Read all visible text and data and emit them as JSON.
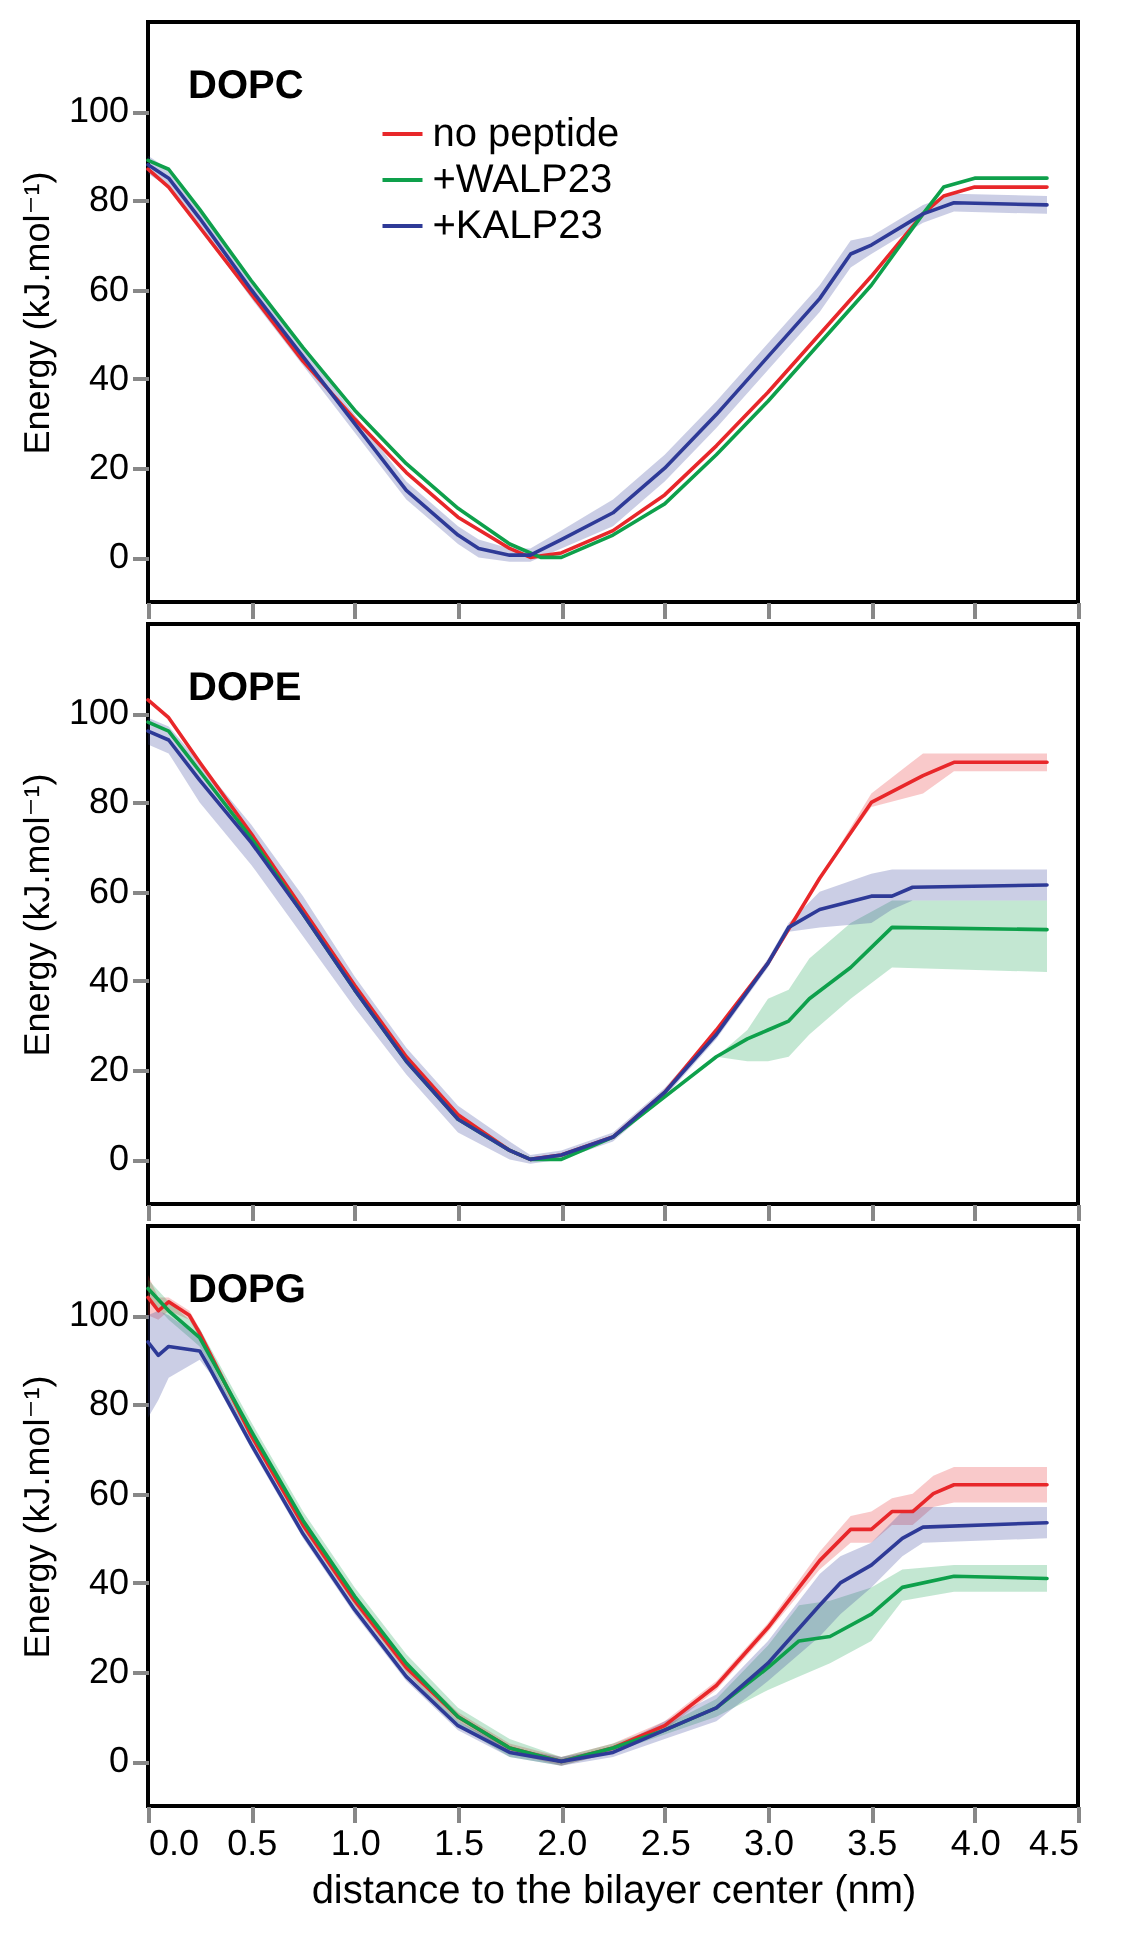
{
  "chart_data": [
    {
      "type": "line",
      "title": "DOPC",
      "ylabel": "Energy (kJ.mol⁻¹)",
      "xlim": [
        0,
        4.5
      ],
      "ylim": [
        -10,
        120
      ],
      "yticks": [
        0,
        20,
        40,
        60,
        80,
        100
      ],
      "xticks": [
        {
          "value": 0,
          "label": null
        },
        {
          "value": 0.5,
          "label": null
        },
        {
          "value": 1,
          "label": null
        },
        {
          "value": 1.5,
          "label": null
        },
        {
          "value": 2,
          "label": null
        },
        {
          "value": 2.5,
          "label": null
        },
        {
          "value": 3,
          "label": null
        },
        {
          "value": 3.5,
          "label": null
        },
        {
          "value": 4,
          "label": null
        },
        {
          "value": 4.5,
          "label": null
        }
      ],
      "tick_labels": "y",
      "legend": "top",
      "line_style": "solid",
      "marker": "none",
      "series": [
        {
          "name": "no peptide",
          "color": "#e8272a",
          "x": [
            0,
            0.1,
            0.25,
            0.5,
            0.75,
            1,
            1.25,
            1.5,
            1.75,
            1.85,
            2,
            2.25,
            2.5,
            2.75,
            3,
            3.25,
            3.5,
            3.75,
            3.85,
            4,
            4.35
          ],
          "values": [
            87,
            83,
            74,
            59,
            44,
            31,
            19,
            9,
            2,
            0,
            1,
            6,
            14,
            25,
            37,
            50,
            63,
            77,
            81,
            83,
            83
          ]
        },
        {
          "name": "+WALP23",
          "color": "#0ea04b",
          "x": [
            0,
            0.1,
            0.25,
            0.5,
            0.75,
            1,
            1.25,
            1.5,
            1.75,
            1.9,
            2,
            2.25,
            2.5,
            2.75,
            3,
            3.25,
            3.5,
            3.75,
            3.85,
            4,
            4.35
          ],
          "values": [
            89,
            87,
            78,
            62,
            47,
            33,
            21,
            11,
            3,
            0,
            0,
            5,
            12,
            23,
            35,
            48,
            61,
            77,
            83,
            85,
            85
          ]
        },
        {
          "name": "+KALP23",
          "color": "#2e3a97",
          "x": [
            0,
            0.1,
            0.25,
            0.5,
            0.75,
            1,
            1.25,
            1.5,
            1.6,
            1.75,
            1.85,
            2,
            2.25,
            2.5,
            2.75,
            3,
            3.25,
            3.4,
            3.5,
            3.75,
            3.9,
            4.35
          ],
          "values": [
            88,
            85,
            76,
            60,
            45,
            30,
            15,
            5,
            2,
            0.5,
            0.5,
            4,
            10,
            20,
            32,
            45,
            58,
            68,
            70,
            77,
            79.5,
            79
          ],
          "lower": [
            86,
            83,
            74,
            58,
            43,
            28,
            13,
            3,
            0,
            -1,
            -1,
            2,
            7,
            17,
            29,
            42,
            55,
            65,
            68,
            75,
            77.5,
            77
          ],
          "upper": [
            90,
            87,
            78,
            62,
            47,
            32,
            17,
            7,
            4,
            2,
            2,
            6,
            13,
            23,
            35,
            48,
            61,
            71,
            72,
            79,
            81.5,
            81
          ]
        }
      ]
    },
    {
      "type": "line",
      "title": "DOPE",
      "ylabel": "Energy (kJ.mol⁻¹)",
      "xlim": [
        0,
        4.5
      ],
      "ylim": [
        -10,
        120
      ],
      "yticks": [
        0,
        20,
        40,
        60,
        80,
        100
      ],
      "xticks": [
        {
          "value": 0,
          "label": null
        },
        {
          "value": 0.5,
          "label": null
        },
        {
          "value": 1,
          "label": null
        },
        {
          "value": 1.5,
          "label": null
        },
        {
          "value": 2,
          "label": null
        },
        {
          "value": 2.5,
          "label": null
        },
        {
          "value": 3,
          "label": null
        },
        {
          "value": 3.5,
          "label": null
        },
        {
          "value": 4,
          "label": null
        },
        {
          "value": 4.5,
          "label": null
        }
      ],
      "tick_labels": "y",
      "line_style": "solid",
      "marker": "none",
      "series": [
        {
          "color": "#e8272a",
          "x": [
            0,
            0.1,
            0.25,
            0.5,
            0.75,
            1,
            1.25,
            1.5,
            1.75,
            1.85,
            2,
            2.25,
            2.5,
            2.75,
            3,
            3.25,
            3.5,
            3.75,
            3.9,
            4.35
          ],
          "values": [
            103,
            99,
            89,
            73,
            56,
            39,
            23,
            10,
            2,
            0,
            1,
            5,
            15,
            29,
            44,
            63,
            80,
            86,
            89,
            89
          ],
          "lower": [
            103,
            99,
            89,
            73,
            56,
            39,
            23,
            10,
            2,
            0,
            1,
            5,
            15,
            29,
            44,
            63,
            79,
            82,
            87,
            87
          ],
          "upper": [
            103,
            99,
            89,
            73,
            56,
            39,
            23,
            10,
            2,
            0,
            1,
            5,
            15,
            29,
            44,
            63,
            82,
            91,
            91,
            91
          ]
        },
        {
          "color": "#0ea04b",
          "x": [
            0,
            0.1,
            0.25,
            0.5,
            0.75,
            1,
            1.25,
            1.5,
            1.75,
            1.85,
            2,
            2.25,
            2.5,
            2.75,
            2.9,
            3,
            3.1,
            3.2,
            3.4,
            3.6,
            4.35
          ],
          "values": [
            98,
            96,
            87,
            72,
            55,
            38,
            22,
            9,
            2,
            0,
            0,
            5,
            14,
            23,
            27,
            29,
            31,
            36,
            43,
            52,
            51.5
          ],
          "lower": [
            98,
            96,
            87,
            72,
            55,
            38,
            22,
            9,
            2,
            0,
            0,
            5,
            14,
            23,
            22,
            22,
            23,
            28,
            36,
            43,
            42
          ],
          "upper": [
            98,
            96,
            87,
            72,
            55,
            38,
            22,
            9,
            2,
            0,
            0,
            5,
            14,
            23,
            29,
            36,
            38,
            45,
            53,
            58,
            58
          ]
        },
        {
          "color": "#2e3a97",
          "x": [
            0,
            0.1,
            0.25,
            0.5,
            0.75,
            1,
            1.25,
            1.5,
            1.75,
            1.85,
            2,
            2.25,
            2.5,
            2.75,
            3,
            3.1,
            3.25,
            3.5,
            3.6,
            3.7,
            4.35
          ],
          "values": [
            96,
            94,
            85,
            71,
            55,
            38,
            22,
            9,
            2,
            0,
            1,
            5,
            15,
            28,
            44,
            52,
            56,
            59,
            59,
            61,
            61.5
          ],
          "lower": [
            93,
            91,
            80,
            66,
            50,
            34,
            19,
            6,
            0,
            -1,
            0,
            4,
            14,
            27,
            43,
            51,
            52,
            53,
            56,
            58,
            58
          ],
          "upper": [
            99,
            97,
            89,
            75,
            59,
            41,
            25,
            12,
            4,
            1,
            2,
            6,
            16,
            29,
            45,
            53,
            60,
            64,
            65,
            65,
            65
          ]
        }
      ]
    },
    {
      "type": "line",
      "title": "DOPG",
      "xlabel": "distance to the bilayer center (nm)",
      "ylabel": "Energy (kJ.mol⁻¹)",
      "xlim": [
        0,
        4.5
      ],
      "ylim": [
        -10,
        120
      ],
      "yticks": [
        0,
        20,
        40,
        60,
        80,
        100
      ],
      "xticks": [
        {
          "value": 0,
          "label": "0.0"
        },
        0.5,
        {
          "value": 1,
          "label": "1.0"
        },
        1.5,
        {
          "value": 2,
          "label": "2.0"
        },
        2.5,
        {
          "value": 3,
          "label": "3.0"
        },
        3.5,
        {
          "value": 4,
          "label": "4.0"
        },
        4.5
      ],
      "line_style": "solid",
      "marker": "none",
      "series": [
        {
          "color": "#e8272a",
          "x": [
            0,
            0.05,
            0.1,
            0.2,
            0.25,
            0.5,
            0.75,
            1,
            1.25,
            1.5,
            1.75,
            2,
            2.25,
            2.5,
            2.75,
            3,
            3.25,
            3.4,
            3.5,
            3.6,
            3.7,
            3.8,
            3.9,
            4.35
          ],
          "values": [
            104,
            101,
            103,
            100,
            96,
            73,
            53,
            36,
            21,
            10,
            3,
            0,
            3,
            8,
            17,
            30,
            45,
            52,
            52,
            56,
            56,
            60,
            62,
            62
          ],
          "lower": [
            100,
            99,
            101,
            99,
            95,
            72,
            52,
            35,
            20,
            9,
            2,
            -1,
            2,
            7,
            16,
            29,
            43,
            49,
            49,
            53,
            53,
            57,
            58,
            58
          ],
          "upper": [
            109,
            104,
            104,
            101,
            97,
            74,
            54,
            37,
            22,
            11,
            4,
            1,
            4,
            9,
            18,
            31,
            47,
            55,
            56,
            59,
            60,
            64,
            66,
            66
          ]
        },
        {
          "color": "#0ea04b",
          "x": [
            0,
            0.1,
            0.2,
            0.25,
            0.5,
            0.75,
            1,
            1.25,
            1.5,
            1.75,
            2,
            2.25,
            2.5,
            2.75,
            3,
            3.15,
            3.3,
            3.5,
            3.65,
            3.9,
            4.35
          ],
          "values": [
            106,
            101,
            97,
            95,
            74,
            54,
            37,
            22,
            10,
            3,
            0,
            3,
            7,
            12,
            21,
            27,
            28,
            33,
            39,
            41.5,
            41
          ],
          "lower": [
            104,
            99,
            95,
            93,
            72,
            52,
            35,
            20,
            8,
            1,
            -1,
            2,
            6,
            10,
            16,
            19,
            22,
            27,
            36,
            38,
            38
          ],
          "upper": [
            108,
            103,
            99,
            97,
            76,
            56,
            39,
            24,
            12,
            5,
            1,
            4,
            8,
            14,
            26,
            35,
            36,
            39,
            43,
            44,
            44
          ]
        },
        {
          "color": "#2e3a97",
          "x": [
            0,
            0.05,
            0.1,
            0.25,
            0.3,
            0.5,
            0.75,
            1,
            1.25,
            1.5,
            1.75,
            2,
            2.25,
            2.5,
            2.75,
            3,
            3.25,
            3.35,
            3.5,
            3.65,
            3.75,
            4.35
          ],
          "values": [
            94,
            91,
            93,
            92,
            88,
            71,
            51,
            34,
            19,
            8,
            2,
            0,
            2,
            7,
            12,
            22,
            35,
            40,
            44,
            50,
            52.5,
            53.5
          ],
          "lower": [
            77,
            81,
            86,
            90,
            87,
            70,
            50,
            33,
            18,
            7,
            1,
            -1,
            1,
            5,
            9,
            18,
            28,
            33,
            39,
            46,
            49,
            50
          ],
          "upper": [
            100,
            101,
            100,
            95,
            90,
            72,
            52,
            35,
            20,
            9,
            3,
            1,
            3,
            9,
            15,
            27,
            42,
            46,
            49,
            56,
            57,
            57
          ]
        }
      ]
    }
  ]
}
